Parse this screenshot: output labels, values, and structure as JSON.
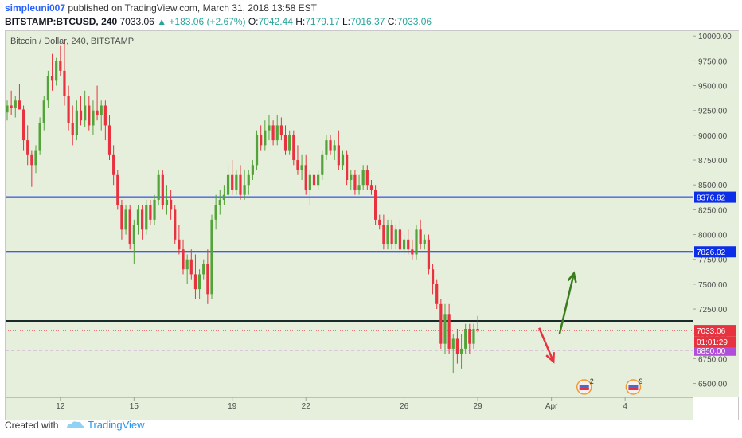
{
  "header": {
    "user": "simpleuni007",
    "published_text": "published on TradingView.com, March 31, 2018 13:58 EST",
    "symbol": "BITSTAMP:BTCUSD, 240",
    "last": "7033.06",
    "change": "▲ +183.06 (+2.67%)",
    "o_label": "O:",
    "o_val": "7042.44",
    "h_label": "H:",
    "h_val": "7179.17",
    "l_label": "L:",
    "l_val": "7016.37",
    "c_label": "C:",
    "c_val": "7033.06"
  },
  "footer": {
    "created_with": "Created with",
    "brand": "TradingView"
  },
  "colors": {
    "background": "#e5efdb",
    "up_candle": "#53a33a",
    "down_candle": "#e8323f",
    "level_line": "#0d2ee8",
    "price_line_dark": "#1a2a2a",
    "dotted_price": "#e8323f",
    "dashed_support": "#b04dd9",
    "arrow_up": "#3a7d1e",
    "arrow_down": "#e8323f"
  },
  "chart_data": {
    "type": "candlestick",
    "title": "Bitcoin / Dollar, 240, BITSTAMP",
    "ylim": [
      6360,
      10050
    ],
    "y_ticks": [
      "10000.00",
      "9750.00",
      "9500.00",
      "9250.00",
      "9000.00",
      "8750.00",
      "8500.00",
      "8250.00",
      "8000.00",
      "7750.00",
      "7500.00",
      "7250.00",
      "7000.00",
      "6750.00",
      "6500.00"
    ],
    "x_ticks": [
      {
        "label": "12",
        "bar": 13
      },
      {
        "label": "15",
        "bar": 31
      },
      {
        "label": "19",
        "bar": 55
      },
      {
        "label": "22",
        "bar": 73
      },
      {
        "label": "26",
        "bar": 97
      },
      {
        "label": "29",
        "bar": 115
      },
      {
        "label": "Apr",
        "bar": 133
      },
      {
        "label": "4",
        "bar": 151
      }
    ],
    "levels": [
      {
        "name": "resistance-upper",
        "value": 8376.82,
        "label": "8376.82"
      },
      {
        "name": "resistance-lower",
        "value": 7826.02,
        "label": "7826.02"
      }
    ],
    "price_marks": [
      {
        "name": "last-price",
        "value": 7033.06,
        "label": "7033.06"
      },
      {
        "name": "countdown",
        "value": 6920,
        "label": "01:01:29"
      },
      {
        "name": "support-dashed",
        "value": 6835,
        "label": "6850.00"
      }
    ],
    "events": [
      {
        "name": "event-flag-1",
        "bar": 141,
        "count": "2"
      },
      {
        "name": "event-flag-2",
        "bar": 153,
        "count": "9"
      }
    ],
    "annotations": [
      {
        "name": "arrow-down",
        "from": {
          "bar": 130,
          "value": 7060
        },
        "to": {
          "bar": 133.5,
          "value": 6720
        }
      },
      {
        "name": "arrow-up",
        "from": {
          "bar": 135,
          "value": 7000
        },
        "to": {
          "bar": 138.5,
          "value": 7610
        }
      }
    ],
    "candles": [
      [
        9230,
        9350,
        9150,
        9300
      ],
      [
        9300,
        9450,
        9200,
        9280
      ],
      [
        9280,
        9400,
        9180,
        9350
      ],
      [
        9350,
        9520,
        9280,
        9260
      ],
      [
        9260,
        9300,
        8850,
        8950
      ],
      [
        8950,
        9100,
        8700,
        8800
      ],
      [
        8800,
        8850,
        8480,
        8700
      ],
      [
        8700,
        8900,
        8620,
        8850
      ],
      [
        8850,
        9180,
        8800,
        9120
      ],
      [
        9120,
        9400,
        9050,
        9350
      ],
      [
        9350,
        9650,
        9280,
        9600
      ],
      [
        9600,
        9820,
        9450,
        9550
      ],
      [
        9550,
        9780,
        9500,
        9750
      ],
      [
        9750,
        9900,
        9600,
        9650
      ],
      [
        9650,
        9950,
        9300,
        9400
      ],
      [
        9400,
        9500,
        9050,
        9120
      ],
      [
        9120,
        9300,
        8900,
        9000
      ],
      [
        9000,
        9350,
        8950,
        9250
      ],
      [
        9250,
        9400,
        9100,
        9150
      ],
      [
        9150,
        9450,
        9080,
        9300
      ],
      [
        9300,
        9400,
        9050,
        9100
      ],
      [
        9100,
        9350,
        9000,
        9250
      ],
      [
        9250,
        9500,
        9150,
        9200
      ],
      [
        9200,
        9350,
        9050,
        9300
      ],
      [
        9300,
        9350,
        8950,
        9100
      ],
      [
        9100,
        9200,
        8750,
        8800
      ],
      [
        8800,
        8900,
        8500,
        8600
      ],
      [
        8600,
        8650,
        8250,
        8300
      ],
      [
        8300,
        8350,
        7950,
        8050
      ],
      [
        8050,
        8300,
        8000,
        8250
      ],
      [
        8250,
        8300,
        7850,
        7900
      ],
      [
        7900,
        8150,
        7700,
        8100
      ],
      [
        8100,
        8300,
        8000,
        8250
      ],
      [
        8250,
        8300,
        7950,
        8050
      ],
      [
        8050,
        8350,
        8000,
        8300
      ],
      [
        8300,
        8350,
        8100,
        8150
      ],
      [
        8150,
        8400,
        8100,
        8350
      ],
      [
        8350,
        8650,
        8300,
        8600
      ],
      [
        8600,
        8650,
        8250,
        8300
      ],
      [
        8300,
        8500,
        8200,
        8350
      ],
      [
        8350,
        8450,
        8150,
        8250
      ],
      [
        8250,
        8300,
        7900,
        7950
      ],
      [
        7950,
        8100,
        7800,
        7850
      ],
      [
        7850,
        7950,
        7600,
        7650
      ],
      [
        7650,
        7800,
        7500,
        7750
      ],
      [
        7750,
        7850,
        7550,
        7600
      ],
      [
        7600,
        7800,
        7350,
        7450
      ],
      [
        7450,
        7650,
        7350,
        7600
      ],
      [
        7600,
        7750,
        7550,
        7700
      ],
      [
        7700,
        7850,
        7300,
        7400
      ],
      [
        7400,
        8200,
        7350,
        8150
      ],
      [
        8150,
        8400,
        8050,
        8300
      ],
      [
        8300,
        8450,
        8200,
        8350
      ],
      [
        8350,
        8500,
        8300,
        8400
      ],
      [
        8400,
        8700,
        8350,
        8600
      ],
      [
        8600,
        8750,
        8400,
        8450
      ],
      [
        8450,
        8650,
        8400,
        8600
      ],
      [
        8600,
        8700,
        8350,
        8400
      ],
      [
        8400,
        8650,
        8350,
        8500
      ],
      [
        8500,
        8650,
        8400,
        8600
      ],
      [
        8600,
        8750,
        8550,
        8700
      ],
      [
        8700,
        9050,
        8650,
        9000
      ],
      [
        9000,
        9100,
        8850,
        8900
      ],
      [
        8900,
        9150,
        8850,
        9050
      ],
      [
        9050,
        9200,
        8950,
        9100
      ],
      [
        9100,
        9150,
        8900,
        8950
      ],
      [
        8950,
        9200,
        8900,
        9100
      ],
      [
        9100,
        9180,
        8950,
        9000
      ],
      [
        9000,
        9100,
        8800,
        8850
      ],
      [
        8850,
        9050,
        8800,
        9000
      ],
      [
        9000,
        9050,
        8700,
        8750
      ],
      [
        8750,
        8900,
        8600,
        8650
      ],
      [
        8650,
        8800,
        8550,
        8700
      ],
      [
        8700,
        8800,
        8400,
        8450
      ],
      [
        8450,
        8650,
        8300,
        8600
      ],
      [
        8600,
        8700,
        8450,
        8500
      ],
      [
        8500,
        8650,
        8450,
        8600
      ],
      [
        8600,
        8850,
        8550,
        8800
      ],
      [
        8800,
        9000,
        8750,
        8950
      ],
      [
        8950,
        9000,
        8800,
        8850
      ],
      [
        8850,
        8950,
        8750,
        8900
      ],
      [
        8900,
        9050,
        8650,
        8700
      ],
      [
        8700,
        8850,
        8650,
        8800
      ],
      [
        8800,
        8850,
        8500,
        8550
      ],
      [
        8550,
        8650,
        8450,
        8600
      ],
      [
        8600,
        8650,
        8400,
        8450
      ],
      [
        8450,
        8600,
        8400,
        8500
      ],
      [
        8500,
        8700,
        8450,
        8650
      ],
      [
        8650,
        8700,
        8450,
        8500
      ],
      [
        8500,
        8550,
        8400,
        8450
      ],
      [
        8450,
        8500,
        8100,
        8150
      ],
      [
        8150,
        8200,
        8050,
        8100
      ],
      [
        8100,
        8200,
        7850,
        7900
      ],
      [
        7900,
        8150,
        7850,
        8100
      ],
      [
        8100,
        8150,
        7850,
        7900
      ],
      [
        7900,
        8100,
        7850,
        8050
      ],
      [
        8050,
        8150,
        7800,
        7850
      ],
      [
        7850,
        8000,
        7800,
        7950
      ],
      [
        7950,
        8050,
        7800,
        7850
      ],
      [
        7850,
        7950,
        7750,
        7800
      ],
      [
        7800,
        8100,
        7750,
        8050
      ],
      [
        8050,
        8150,
        7850,
        7900
      ],
      [
        7900,
        8000,
        7850,
        7950
      ],
      [
        7950,
        8000,
        7600,
        7650
      ],
      [
        7650,
        7700,
        7400,
        7500
      ],
      [
        7500,
        7550,
        7250,
        7300
      ],
      [
        7300,
        7350,
        6850,
        6900
      ],
      [
        6900,
        7300,
        6800,
        7200
      ],
      [
        7200,
        7300,
        6800,
        6850
      ],
      [
        6850,
        7000,
        6600,
        6950
      ],
      [
        6950,
        7050,
        6700,
        6800
      ],
      [
        6800,
        7000,
        6650,
        6850
      ],
      [
        6850,
        7100,
        6800,
        7050
      ],
      [
        7050,
        7100,
        6800,
        6900
      ],
      [
        6900,
        7100,
        6850,
        7050
      ],
      [
        7050,
        7180,
        7016,
        7033
      ]
    ]
  }
}
